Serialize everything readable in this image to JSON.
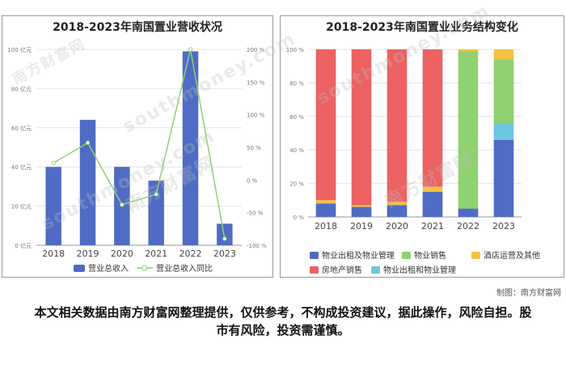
{
  "watermark": {
    "brand": "南方财富网",
    "latin": "southmoney.com"
  },
  "credit": "制图：南方财富网",
  "disclaimer": "本文相关数据由南方财富网整理提供，仅供参考，不构成投资建议，据此操作，风险自担。股市有风险，投资需谨慎。",
  "chart_data": [
    {
      "type": "bar",
      "title": "2018-2023年南国置业营收状况",
      "categories": [
        "2018",
        "2019",
        "2020",
        "2021",
        "2022",
        "2023"
      ],
      "series": [
        {
          "name": "营业总收入",
          "type": "bar",
          "axis": "left",
          "values": [
            40,
            64,
            40,
            33,
            99,
            11
          ],
          "color": "#4f6bc4"
        },
        {
          "name": "营业总收入同比",
          "type": "line",
          "axis": "right",
          "values": [
            26,
            57,
            -38,
            -22,
            200,
            -90
          ],
          "color": "#8fd16f"
        }
      ],
      "y_left": {
        "ylim": [
          0,
          100
        ],
        "ticks": [
          "0 亿元",
          "20 亿元",
          "40 亿元",
          "60 亿元",
          "80 亿元",
          "100 亿元"
        ]
      },
      "y_right": {
        "ylim": [
          -100,
          200
        ],
        "ticks": [
          "-100 %",
          "-50 %",
          "0 %",
          "50 %",
          "100 %",
          "150 %",
          "200 %"
        ]
      },
      "grid": true,
      "legend": "bottom"
    },
    {
      "type": "bar",
      "stacked": true,
      "title": "2018-2023年南国置业业务结构变化",
      "categories": [
        "2018",
        "2019",
        "2020",
        "2021",
        "2022",
        "2023"
      ],
      "series": [
        {
          "name": "物业出租及物业管理",
          "values": [
            8,
            6,
            7,
            15,
            5,
            46
          ],
          "color": "#4f6bc4"
        },
        {
          "name": "物业销售",
          "values": [
            0,
            0,
            0,
            0,
            94,
            38
          ],
          "color": "#8fd16f"
        },
        {
          "name": "酒店运营及其他",
          "values": [
            2,
            1,
            2,
            3,
            1,
            6
          ],
          "color": "#f6c242"
        },
        {
          "name": "房地产销售",
          "values": [
            90,
            93,
            91,
            82,
            0,
            0
          ],
          "color": "#ec6262"
        },
        {
          "name": "物业出租和物业管理",
          "values": [
            0,
            0,
            0,
            0,
            0,
            10
          ],
          "color": "#6ec6e0"
        }
      ],
      "ylim": [
        0,
        100
      ],
      "ticks": [
        "0 %",
        "20 %",
        "40 %",
        "60 %",
        "80 %",
        "100 %"
      ],
      "grid": true,
      "legend": "bottom"
    }
  ]
}
